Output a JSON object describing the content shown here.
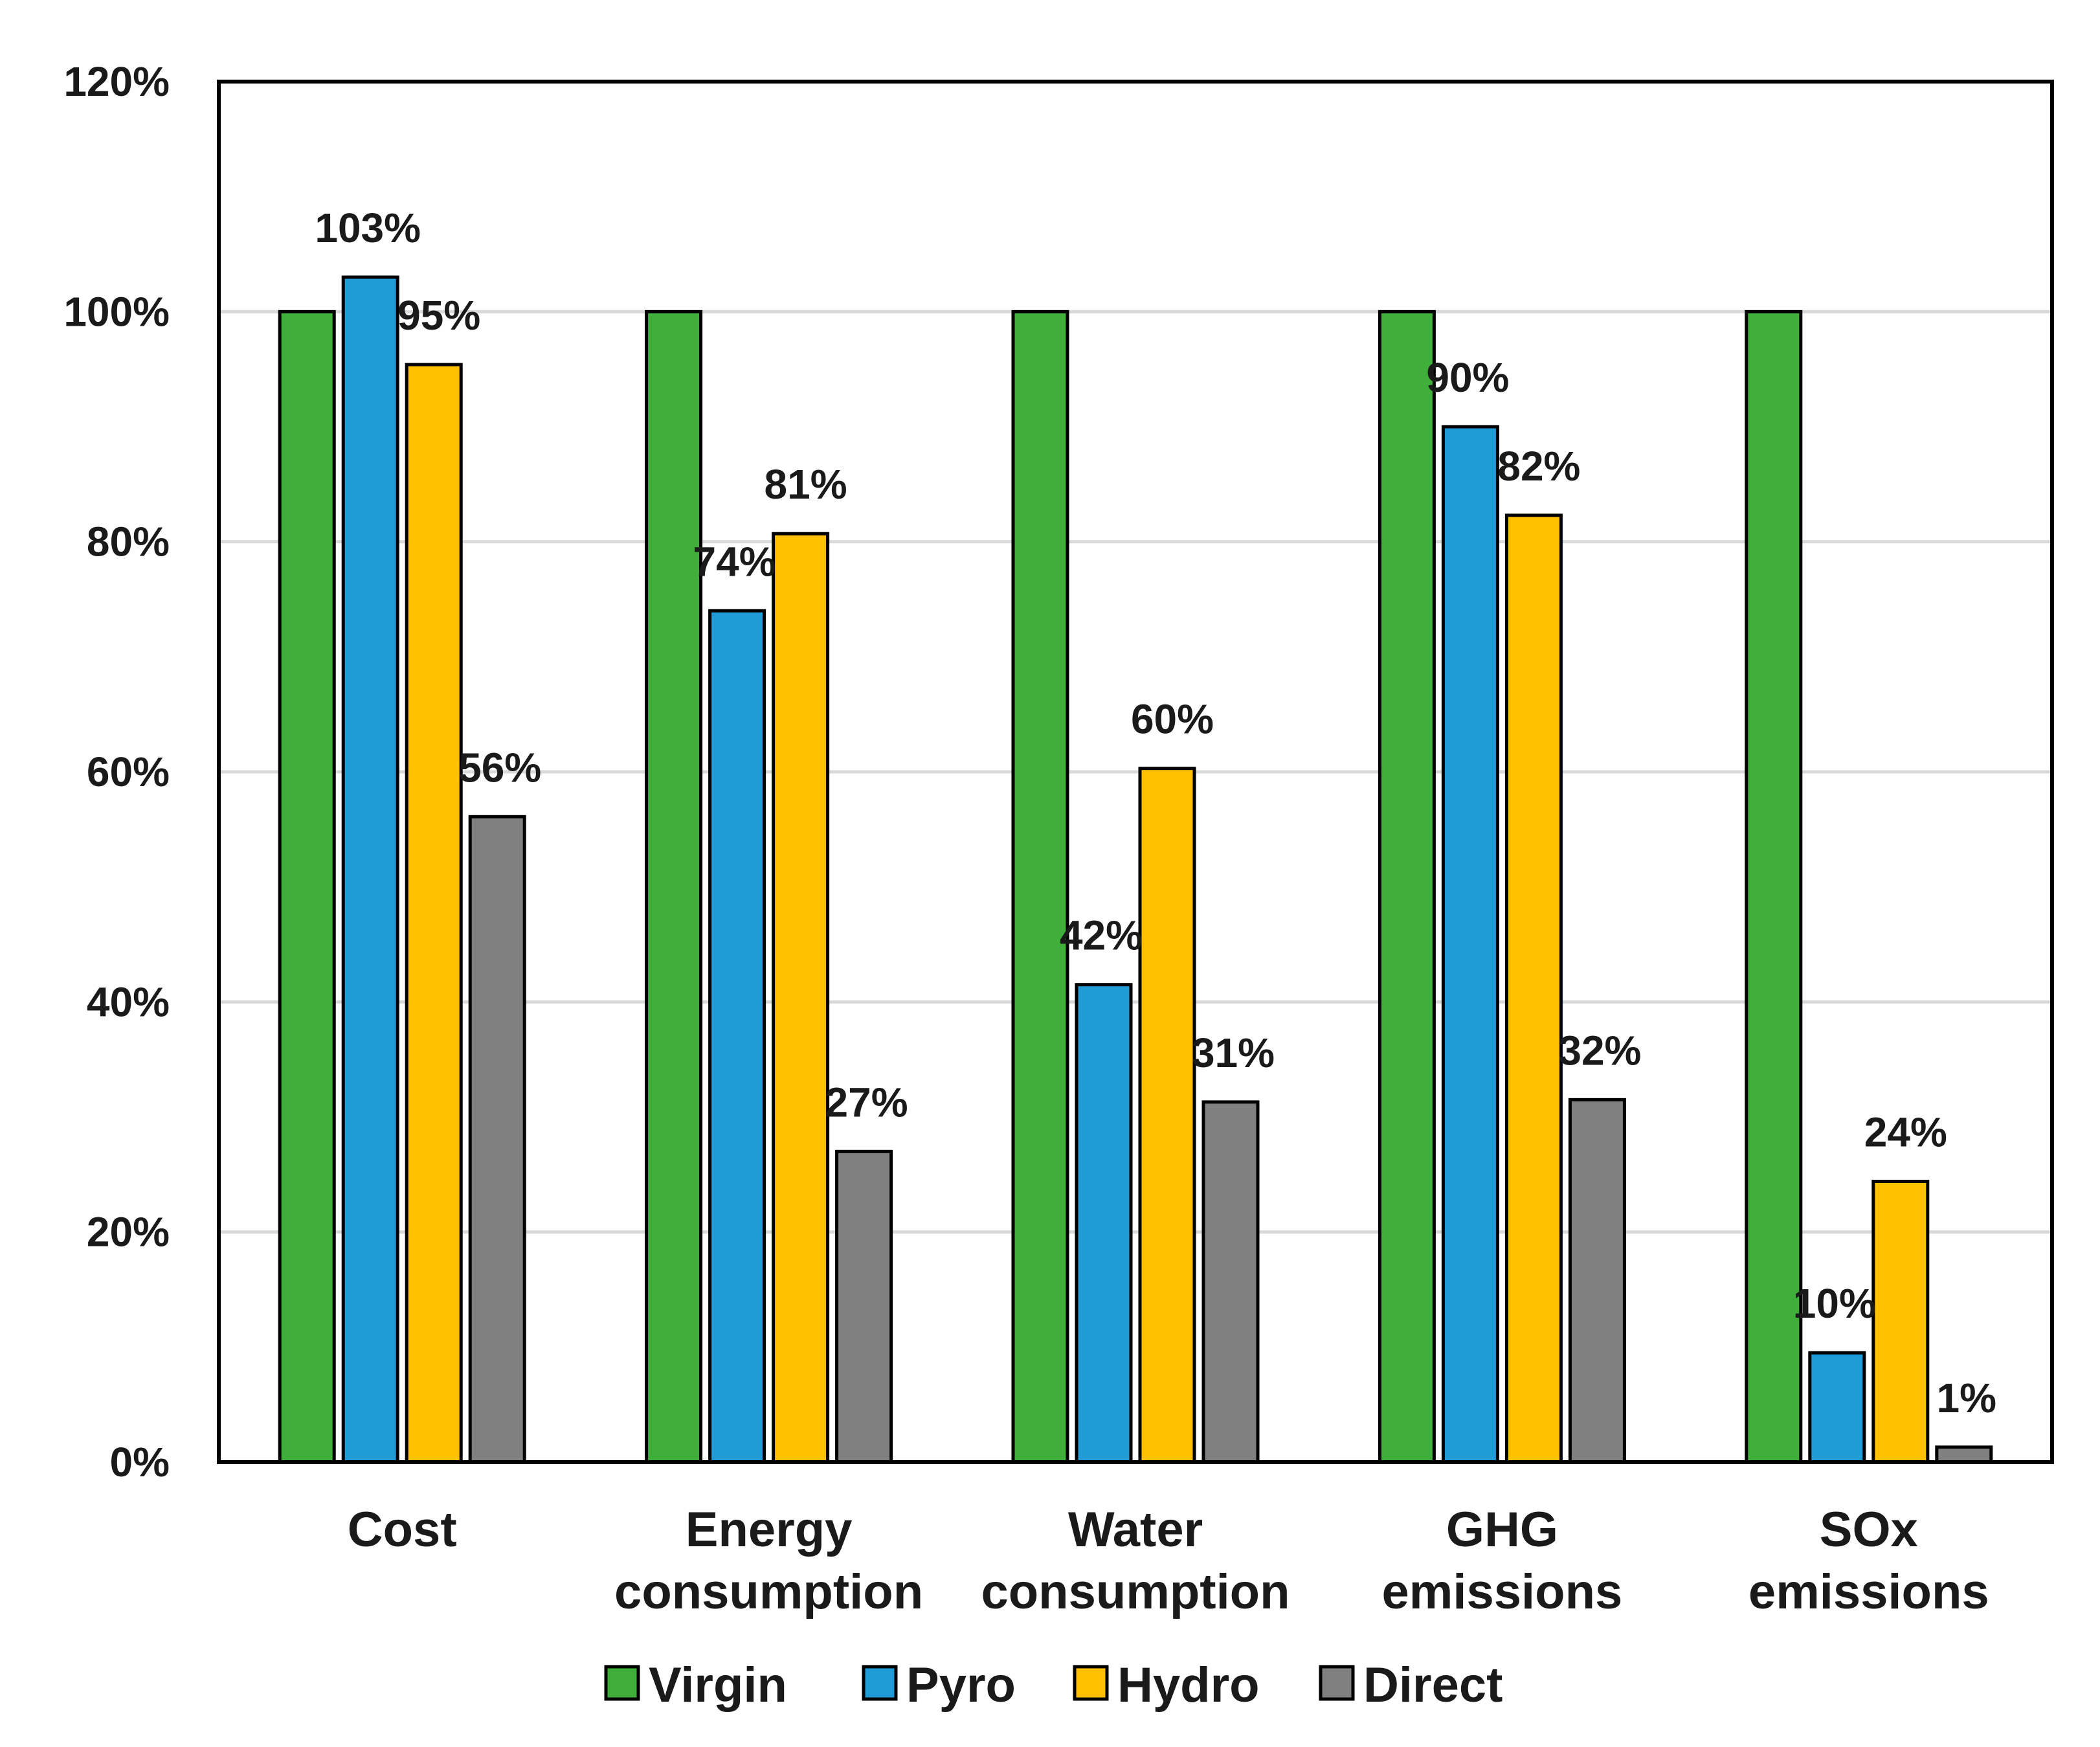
{
  "chart_data": {
    "type": "bar",
    "title": "",
    "xlabel": "",
    "ylabel": "",
    "ylim": [
      0,
      120
    ],
    "y_ticks": [
      "0%",
      "20%",
      "40%",
      "60%",
      "80%",
      "100%",
      "120%"
    ],
    "y_tick_values": [
      0,
      20,
      40,
      60,
      80,
      100,
      120
    ],
    "grid": true,
    "legend_position": "bottom",
    "categories": [
      [
        "Cost"
      ],
      [
        "Energy",
        "consumption"
      ],
      [
        "Water",
        "consumption"
      ],
      [
        "GHG",
        "emissions"
      ],
      [
        "SOx",
        "emissions"
      ]
    ],
    "series": [
      {
        "name": "Virgin",
        "color": "#3fae3a",
        "values": [
          100,
          100,
          100,
          100,
          100
        ],
        "labels": [
          "",
          "",
          "",
          "",
          ""
        ]
      },
      {
        "name": "Pyro",
        "color": "#1f9bd7",
        "values": [
          103,
          74,
          41.5,
          90,
          9.5
        ],
        "labels": [
          "103%",
          "74%",
          "42%",
          "90%",
          "10%"
        ]
      },
      {
        "name": "Hydro",
        "color": "#ffc000",
        "values": [
          95.4,
          80.7,
          60.3,
          82.3,
          24.4
        ],
        "labels": [
          "95%",
          "81%",
          "60%",
          "82%",
          "24%"
        ]
      },
      {
        "name": "Direct",
        "color": "#808080",
        "values": [
          56.1,
          27,
          31.3,
          31.5,
          1.3
        ],
        "labels": [
          "56%",
          "27%",
          "31%",
          "32%",
          "1%"
        ]
      }
    ]
  }
}
